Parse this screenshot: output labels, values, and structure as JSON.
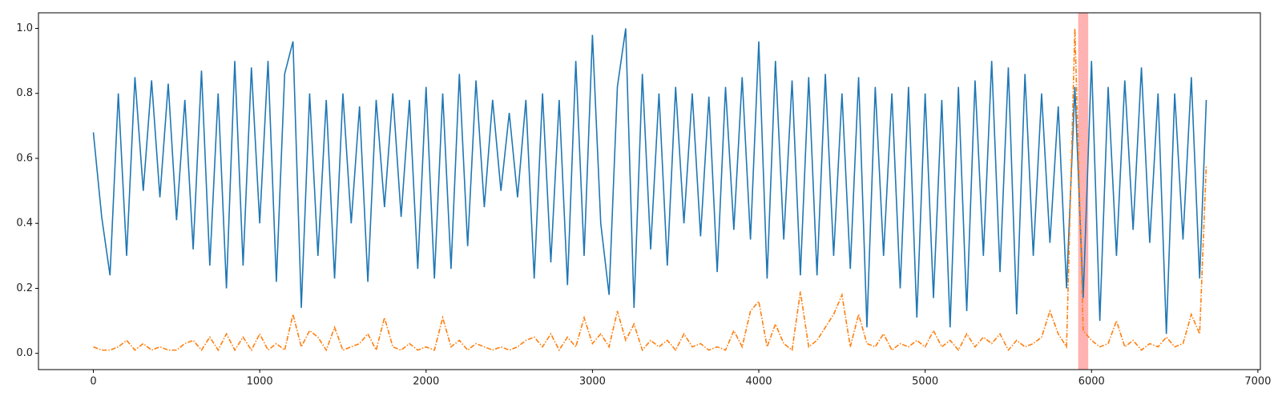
{
  "chart_data": {
    "type": "line",
    "x": [
      0,
      50,
      100,
      150,
      200,
      250,
      300,
      350,
      400,
      450,
      500,
      550,
      600,
      650,
      700,
      750,
      800,
      850,
      900,
      950,
      1000,
      1050,
      1100,
      1150,
      1200,
      1250,
      1300,
      1350,
      1400,
      1450,
      1500,
      1550,
      1600,
      1650,
      1700,
      1750,
      1800,
      1850,
      1900,
      1950,
      2000,
      2050,
      2100,
      2150,
      2200,
      2250,
      2300,
      2350,
      2400,
      2450,
      2500,
      2550,
      2600,
      2650,
      2700,
      2750,
      2800,
      2850,
      2900,
      2950,
      3000,
      3050,
      3100,
      3150,
      3200,
      3250,
      3300,
      3350,
      3400,
      3450,
      3500,
      3550,
      3600,
      3650,
      3700,
      3750,
      3800,
      3850,
      3900,
      3950,
      4000,
      4050,
      4100,
      4150,
      4200,
      4250,
      4300,
      4350,
      4400,
      4450,
      4500,
      4550,
      4600,
      4650,
      4700,
      4750,
      4800,
      4850,
      4900,
      4950,
      5000,
      5050,
      5100,
      5150,
      5200,
      5250,
      5300,
      5350,
      5400,
      5450,
      5500,
      5550,
      5600,
      5650,
      5700,
      5750,
      5800,
      5850,
      5900,
      5950,
      6000,
      6050,
      6100,
      6150,
      6200,
      6250,
      6300,
      6350,
      6400,
      6450,
      6500,
      6550,
      6600,
      6650,
      6690
    ],
    "series": [
      {
        "color": "#1f77b4",
        "dash": "solid",
        "values": [
          0.68,
          0.42,
          0.24,
          0.8,
          0.3,
          0.85,
          0.5,
          0.84,
          0.48,
          0.83,
          0.41,
          0.78,
          0.32,
          0.87,
          0.27,
          0.8,
          0.2,
          0.9,
          0.27,
          0.88,
          0.4,
          0.9,
          0.22,
          0.86,
          0.96,
          0.14,
          0.8,
          0.3,
          0.78,
          0.23,
          0.8,
          0.4,
          0.76,
          0.22,
          0.78,
          0.45,
          0.8,
          0.42,
          0.78,
          0.26,
          0.82,
          0.23,
          0.8,
          0.26,
          0.86,
          0.33,
          0.84,
          0.45,
          0.78,
          0.5,
          0.74,
          0.48,
          0.78,
          0.23,
          0.8,
          0.28,
          0.78,
          0.21,
          0.9,
          0.3,
          0.98,
          0.4,
          0.18,
          0.82,
          1.0,
          0.14,
          0.86,
          0.32,
          0.8,
          0.27,
          0.82,
          0.4,
          0.8,
          0.36,
          0.79,
          0.25,
          0.82,
          0.38,
          0.85,
          0.35,
          0.96,
          0.23,
          0.9,
          0.35,
          0.84,
          0.24,
          0.85,
          0.24,
          0.86,
          0.3,
          0.8,
          0.26,
          0.85,
          0.08,
          0.82,
          0.3,
          0.8,
          0.2,
          0.82,
          0.11,
          0.8,
          0.17,
          0.78,
          0.08,
          0.82,
          0.13,
          0.84,
          0.3,
          0.9,
          0.25,
          0.88,
          0.12,
          0.86,
          0.3,
          0.8,
          0.34,
          0.76,
          0.2,
          0.82,
          0.17,
          0.9,
          0.1,
          0.82,
          0.3,
          0.84,
          0.38,
          0.88,
          0.34,
          0.8,
          0.06,
          0.8,
          0.35,
          0.85,
          0.23,
          0.78
        ]
      },
      {
        "color": "#ff7f0e",
        "dash": "dashdot",
        "values": [
          0.02,
          0.01,
          0.01,
          0.02,
          0.04,
          0.01,
          0.03,
          0.01,
          0.02,
          0.01,
          0.01,
          0.03,
          0.04,
          0.01,
          0.05,
          0.01,
          0.06,
          0.01,
          0.05,
          0.01,
          0.06,
          0.01,
          0.03,
          0.01,
          0.12,
          0.02,
          0.07,
          0.05,
          0.01,
          0.08,
          0.01,
          0.02,
          0.03,
          0.06,
          0.01,
          0.11,
          0.02,
          0.01,
          0.03,
          0.01,
          0.02,
          0.01,
          0.11,
          0.02,
          0.04,
          0.01,
          0.03,
          0.02,
          0.01,
          0.02,
          0.01,
          0.02,
          0.04,
          0.05,
          0.02,
          0.06,
          0.01,
          0.05,
          0.02,
          0.11,
          0.03,
          0.06,
          0.02,
          0.13,
          0.04,
          0.09,
          0.01,
          0.04,
          0.02,
          0.04,
          0.01,
          0.06,
          0.02,
          0.03,
          0.01,
          0.02,
          0.01,
          0.07,
          0.02,
          0.13,
          0.16,
          0.02,
          0.09,
          0.03,
          0.01,
          0.19,
          0.02,
          0.04,
          0.08,
          0.12,
          0.18,
          0.02,
          0.12,
          0.03,
          0.02,
          0.06,
          0.01,
          0.03,
          0.02,
          0.04,
          0.02,
          0.07,
          0.02,
          0.04,
          0.01,
          0.06,
          0.02,
          0.05,
          0.03,
          0.06,
          0.01,
          0.04,
          0.02,
          0.03,
          0.05,
          0.13,
          0.06,
          0.02,
          1.0,
          0.07,
          0.04,
          0.02,
          0.03,
          0.1,
          0.02,
          0.04,
          0.01,
          0.03,
          0.02,
          0.05,
          0.02,
          0.03,
          0.12,
          0.06,
          0.58
        ]
      }
    ],
    "axvspan": {
      "range": [
        5920,
        5980
      ],
      "color": "#ff0000",
      "alpha": 0.3
    },
    "xlim": [
      -330,
      7015
    ],
    "xticks": [
      0,
      1000,
      2000,
      3000,
      4000,
      5000,
      6000,
      7000
    ],
    "ylim": [
      -0.05,
      1.048
    ],
    "yticks": [
      {
        "value": 0,
        "label": "0.0"
      },
      {
        "value": 0.2,
        "label": "0.2"
      },
      {
        "value": 0.4,
        "label": "0.4"
      },
      {
        "value": 0.6,
        "label": "0.6"
      },
      {
        "value": 0.8,
        "label": "0.8"
      },
      {
        "value": 1.0,
        "label": "1.0"
      }
    ]
  }
}
